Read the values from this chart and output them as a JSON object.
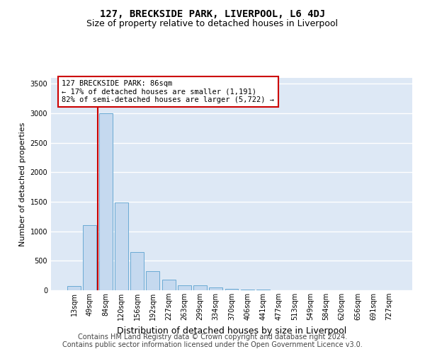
{
  "title": "127, BRECKSIDE PARK, LIVERPOOL, L6 4DJ",
  "subtitle": "Size of property relative to detached houses in Liverpool",
  "xlabel": "Distribution of detached houses by size in Liverpool",
  "ylabel": "Number of detached properties",
  "categories": [
    "13sqm",
    "49sqm",
    "84sqm",
    "120sqm",
    "156sqm",
    "192sqm",
    "227sqm",
    "263sqm",
    "299sqm",
    "334sqm",
    "370sqm",
    "406sqm",
    "441sqm",
    "477sqm",
    "513sqm",
    "549sqm",
    "584sqm",
    "620sqm",
    "656sqm",
    "691sqm",
    "727sqm"
  ],
  "values": [
    70,
    1100,
    3000,
    1490,
    650,
    320,
    175,
    90,
    80,
    48,
    28,
    14,
    8,
    4,
    3,
    2,
    1,
    1,
    0,
    0,
    0
  ],
  "bar_color": "#c5d9ef",
  "bar_edge_color": "#6aaad4",
  "marker_bar_index": 2,
  "marker_color": "#cc0000",
  "annotation_text": "127 BRECKSIDE PARK: 86sqm\n← 17% of detached houses are smaller (1,191)\n82% of semi-detached houses are larger (5,722) →",
  "annotation_box_facecolor": "#ffffff",
  "annotation_box_edgecolor": "#cc0000",
  "ylim": [
    0,
    3600
  ],
  "yticks": [
    0,
    500,
    1000,
    1500,
    2000,
    2500,
    3000,
    3500
  ],
  "plot_bg_color": "#dde8f5",
  "grid_color": "#ffffff",
  "fig_bg_color": "#ffffff",
  "footer": "Contains HM Land Registry data © Crown copyright and database right 2024.\nContains public sector information licensed under the Open Government Licence v3.0.",
  "title_fontsize": 10,
  "subtitle_fontsize": 9,
  "ylabel_fontsize": 8,
  "xlabel_fontsize": 9,
  "tick_fontsize": 7,
  "annot_fontsize": 7.5,
  "footer_fontsize": 7
}
